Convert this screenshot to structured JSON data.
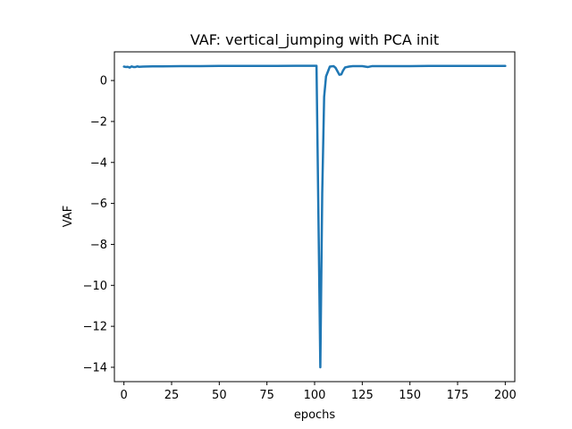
{
  "chart_data": {
    "type": "line",
    "title": "VAF: vertical_jumping with PCA init",
    "xlabel": "epochs",
    "ylabel": "VAF",
    "xlim": [
      -5,
      205
    ],
    "ylim": [
      -14.7,
      1.4
    ],
    "xticks": [
      0,
      25,
      50,
      75,
      100,
      125,
      150,
      175,
      200
    ],
    "yticks": [
      0,
      -2,
      -4,
      -6,
      -8,
      -10,
      -12,
      -14
    ],
    "grid": false,
    "series": [
      {
        "color": "#1f77b4",
        "x": [
          0,
          1,
          2,
          3,
          4,
          5,
          6,
          7,
          8,
          10,
          15,
          20,
          30,
          40,
          50,
          60,
          70,
          80,
          90,
          100,
          101,
          102,
          103,
          104,
          105,
          106,
          108,
          110,
          111,
          112,
          113,
          114,
          115,
          116,
          118,
          120,
          125,
          128,
          130,
          140,
          150,
          160,
          170,
          180,
          190,
          200
        ],
        "y": [
          0.68,
          0.66,
          0.67,
          0.63,
          0.69,
          0.66,
          0.66,
          0.69,
          0.67,
          0.68,
          0.69,
          0.69,
          0.7,
          0.7,
          0.71,
          0.71,
          0.71,
          0.71,
          0.72,
          0.72,
          0.72,
          -6.5,
          -14.0,
          -5.5,
          -0.8,
          0.2,
          0.68,
          0.7,
          0.62,
          0.45,
          0.28,
          0.3,
          0.5,
          0.64,
          0.68,
          0.7,
          0.7,
          0.66,
          0.7,
          0.7,
          0.7,
          0.71,
          0.71,
          0.71,
          0.71,
          0.71
        ]
      }
    ]
  }
}
